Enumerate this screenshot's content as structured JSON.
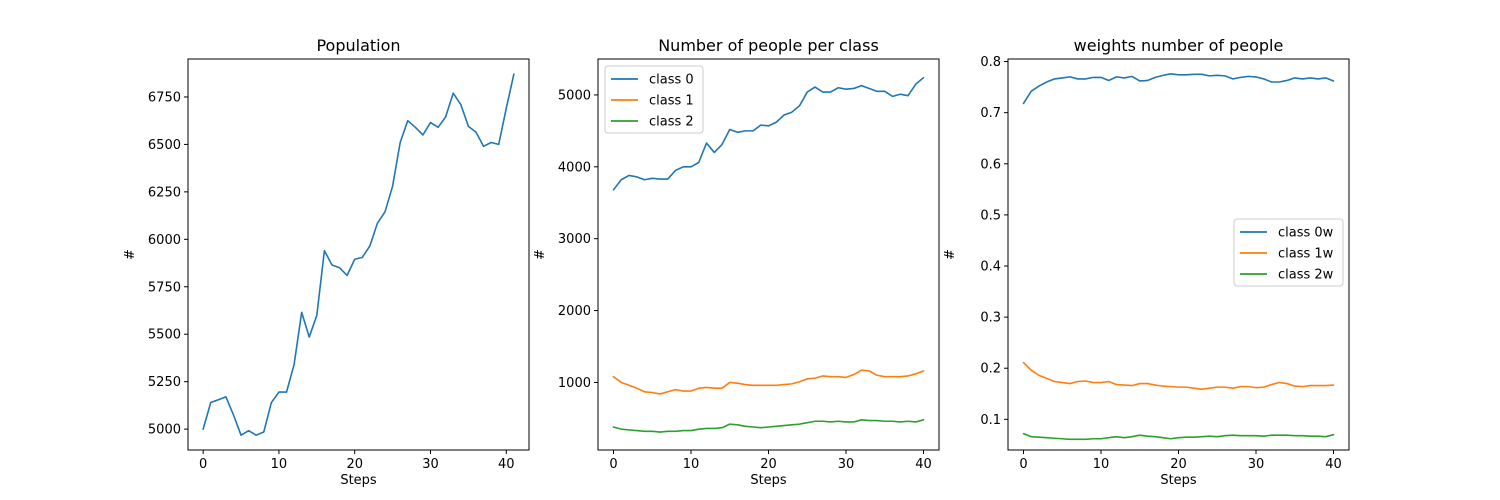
{
  "colors": {
    "blue": "#1f77b4",
    "orange": "#ff7f0e",
    "green": "#2ca02c"
  },
  "chart_data": [
    {
      "type": "line",
      "title": "Population",
      "xlabel": "Steps",
      "ylabel": "#",
      "xlim": [
        -2,
        43
      ],
      "ylim": [
        4890,
        6950
      ],
      "xticks": [
        0,
        10,
        20,
        30,
        40
      ],
      "yticks": [
        5000,
        5250,
        5500,
        5750,
        6000,
        6250,
        6500,
        6750
      ],
      "legend": "none",
      "series": [
        {
          "color": "#1f77b4",
          "x": [
            0,
            1,
            2,
            3,
            4,
            5,
            6,
            7,
            8,
            9,
            10,
            11,
            12,
            13,
            14,
            15,
            16,
            17,
            18,
            19,
            20,
            21,
            22,
            23,
            24,
            25,
            26,
            27,
            28,
            29,
            30,
            31,
            32,
            33,
            34,
            35,
            36,
            37,
            38,
            39,
            40,
            41
          ],
          "values": [
            5000,
            5140,
            5155,
            5170,
            5075,
            4968,
            4992,
            4968,
            4985,
            5140,
            5195,
            5195,
            5340,
            5615,
            5485,
            5600,
            5940,
            5865,
            5850,
            5810,
            5895,
            5905,
            5965,
            6085,
            6145,
            6280,
            6510,
            6625,
            6590,
            6550,
            6615,
            6590,
            6645,
            6770,
            6710,
            6595,
            6565,
            6490,
            6510,
            6500,
            6690,
            6870
          ]
        }
      ]
    },
    {
      "type": "line",
      "title": "Number of people per class",
      "xlabel": "Steps",
      "ylabel": "#",
      "xlim": [
        -2,
        42
      ],
      "ylim": [
        60,
        5500
      ],
      "xticks": [
        0,
        10,
        20,
        30,
        40
      ],
      "yticks": [
        1000,
        2000,
        3000,
        4000,
        5000
      ],
      "legend": "upper-left",
      "x": [
        0,
        1,
        2,
        3,
        4,
        5,
        6,
        7,
        8,
        9,
        10,
        11,
        12,
        13,
        14,
        15,
        16,
        17,
        18,
        19,
        20,
        21,
        22,
        23,
        24,
        25,
        26,
        27,
        28,
        29,
        30,
        31,
        32,
        33,
        34,
        35,
        36,
        37,
        38,
        39,
        40
      ],
      "series": [
        {
          "name": "class 0",
          "color": "#1f77b4",
          "values": [
            3680,
            3820,
            3880,
            3860,
            3820,
            3840,
            3830,
            3830,
            3950,
            4000,
            4000,
            4060,
            4330,
            4200,
            4310,
            4520,
            4480,
            4500,
            4500,
            4580,
            4570,
            4620,
            4720,
            4760,
            4850,
            5040,
            5110,
            5040,
            5040,
            5100,
            5080,
            5090,
            5130,
            5090,
            5050,
            5050,
            4980,
            5010,
            4990,
            5150,
            5240
          ]
        },
        {
          "name": "class 1",
          "color": "#ff7f0e",
          "values": [
            1080,
            1000,
            960,
            920,
            870,
            860,
            840,
            870,
            900,
            880,
            880,
            920,
            930,
            920,
            920,
            1000,
            990,
            970,
            960,
            960,
            960,
            960,
            970,
            980,
            1010,
            1050,
            1060,
            1090,
            1080,
            1080,
            1070,
            1110,
            1170,
            1160,
            1100,
            1080,
            1080,
            1080,
            1090,
            1120,
            1160
          ]
        },
        {
          "name": "class 2",
          "color": "#2ca02c",
          "values": [
            380,
            350,
            340,
            330,
            320,
            320,
            310,
            320,
            320,
            330,
            330,
            350,
            360,
            360,
            370,
            420,
            410,
            390,
            380,
            370,
            380,
            390,
            400,
            410,
            420,
            440,
            460,
            460,
            450,
            460,
            450,
            450,
            480,
            470,
            470,
            460,
            460,
            450,
            460,
            450,
            480
          ]
        }
      ]
    },
    {
      "type": "line",
      "title": "weights number of people",
      "xlabel": "Steps",
      "ylabel": "#",
      "xlim": [
        -2,
        42
      ],
      "ylim": [
        0.04,
        0.805
      ],
      "xticks": [
        0,
        10,
        20,
        30,
        40
      ],
      "yticks": [
        0.1,
        0.2,
        0.3,
        0.4,
        0.5,
        0.6,
        0.7,
        0.8
      ],
      "legend": "center-right",
      "x": [
        0,
        1,
        2,
        3,
        4,
        5,
        6,
        7,
        8,
        9,
        10,
        11,
        12,
        13,
        14,
        15,
        16,
        17,
        18,
        19,
        20,
        21,
        22,
        23,
        24,
        25,
        26,
        27,
        28,
        29,
        30,
        31,
        32,
        33,
        34,
        35,
        36,
        37,
        38,
        39,
        40
      ],
      "series": [
        {
          "name": "class 0w",
          "color": "#1f77b4",
          "values": [
            0.718,
            0.742,
            0.752,
            0.76,
            0.766,
            0.768,
            0.77,
            0.766,
            0.766,
            0.769,
            0.769,
            0.763,
            0.77,
            0.768,
            0.771,
            0.762,
            0.763,
            0.769,
            0.773,
            0.776,
            0.774,
            0.774,
            0.775,
            0.775,
            0.772,
            0.773,
            0.772,
            0.766,
            0.769,
            0.771,
            0.77,
            0.766,
            0.76,
            0.76,
            0.763,
            0.768,
            0.766,
            0.768,
            0.766,
            0.768,
            0.762
          ]
        },
        {
          "name": "class 1w",
          "color": "#ff7f0e",
          "values": [
            0.211,
            0.196,
            0.186,
            0.18,
            0.174,
            0.172,
            0.17,
            0.174,
            0.175,
            0.172,
            0.172,
            0.174,
            0.168,
            0.167,
            0.166,
            0.17,
            0.17,
            0.167,
            0.165,
            0.164,
            0.163,
            0.163,
            0.161,
            0.159,
            0.161,
            0.163,
            0.163,
            0.161,
            0.164,
            0.164,
            0.162,
            0.163,
            0.168,
            0.172,
            0.17,
            0.165,
            0.164,
            0.166,
            0.166,
            0.166,
            0.167
          ]
        },
        {
          "name": "class 2w",
          "color": "#2ca02c",
          "values": [
            0.072,
            0.066,
            0.065,
            0.064,
            0.063,
            0.062,
            0.061,
            0.061,
            0.061,
            0.062,
            0.062,
            0.064,
            0.066,
            0.064,
            0.066,
            0.069,
            0.067,
            0.066,
            0.064,
            0.062,
            0.064,
            0.065,
            0.065,
            0.066,
            0.067,
            0.066,
            0.068,
            0.069,
            0.068,
            0.068,
            0.068,
            0.067,
            0.069,
            0.069,
            0.069,
            0.068,
            0.068,
            0.067,
            0.067,
            0.066,
            0.07
          ]
        }
      ]
    }
  ]
}
